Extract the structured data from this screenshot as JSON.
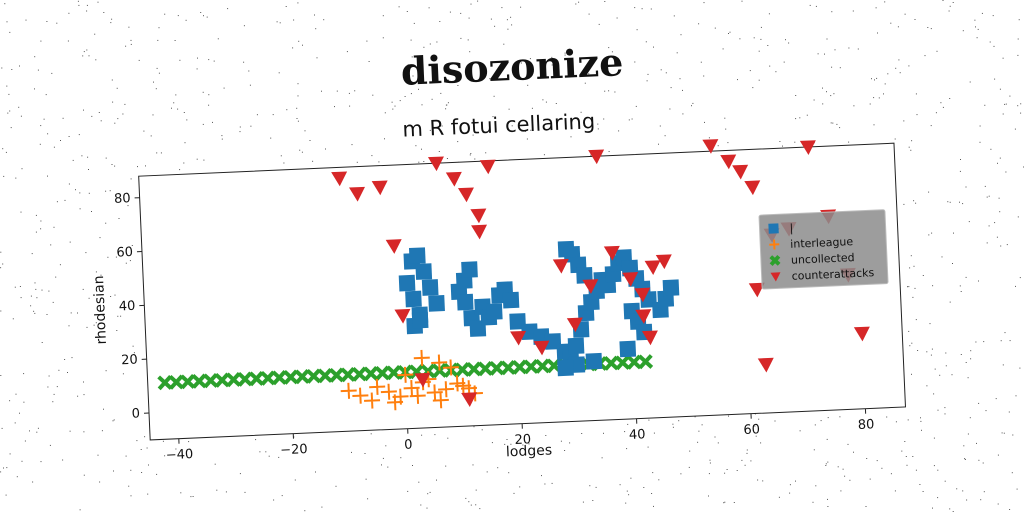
{
  "suptitle": "disozonize",
  "chart_data": {
    "type": "scatter",
    "title": "m R fotui cellaring",
    "xlabel": "lodges",
    "ylabel": "rhodesian",
    "xlim": [
      -45,
      87
    ],
    "ylim": [
      -10,
      88
    ],
    "xticks": [
      -40,
      -20,
      0,
      20,
      40,
      60,
      80
    ],
    "yticks": [
      0,
      20,
      40,
      60,
      80
    ],
    "xtick_labels": [
      "−40",
      "−20",
      "0",
      "20",
      "40",
      "60",
      "80"
    ],
    "ytick_labels": [
      "0",
      "20",
      "40",
      "60",
      "80"
    ],
    "grid": false,
    "legend": {
      "placement": "right"
    },
    "series": [
      {
        "name": "|",
        "marker": "square",
        "color": "#1f77b4",
        "x": [
          2,
          3,
          2,
          1,
          2,
          3,
          4,
          5,
          6,
          3,
          10,
          11,
          12,
          11,
          12,
          13,
          14,
          15,
          16,
          17,
          18,
          19,
          20,
          22,
          24,
          26,
          28,
          29,
          30,
          31,
          32,
          33,
          34,
          35,
          29,
          30,
          31,
          32,
          36,
          37,
          38,
          39,
          40,
          41,
          42,
          43,
          45,
          46,
          47,
          40,
          41,
          42,
          39,
          33,
          30,
          28
        ],
        "y": [
          28,
          32,
          38,
          44,
          52,
          54,
          48,
          42,
          36,
          30,
          40,
          44,
          48,
          36,
          30,
          26,
          34,
          30,
          32,
          38,
          40,
          36,
          28,
          24,
          22,
          20,
          16,
          14,
          18,
          24,
          30,
          34,
          38,
          42,
          54,
          52,
          48,
          44,
          40,
          44,
          48,
          50,
          46,
          42,
          38,
          34,
          30,
          34,
          38,
          30,
          26,
          22,
          16,
          12,
          11,
          10
        ]
      },
      {
        "name": "interleague",
        "marker": "plus",
        "color": "#ff7f0e",
        "x": [
          -10,
          -8,
          -5,
          -3,
          -1,
          1,
          3,
          5,
          7,
          9,
          -6,
          -2,
          2,
          4,
          6,
          8,
          10,
          12,
          0,
          3,
          11,
          6
        ],
        "y": [
          5,
          3,
          6,
          4,
          2,
          5,
          7,
          3,
          4,
          6,
          1,
          0,
          2,
          8,
          14,
          12,
          5,
          2,
          10,
          16,
          4,
          0
        ]
      },
      {
        "name": "uncollected",
        "marker": "x",
        "color": "#2ca02c",
        "x": [
          -42,
          -40,
          -38,
          -36,
          -34,
          -32,
          -30,
          -28,
          -26,
          -24,
          -22,
          -20,
          -18,
          -16,
          -14,
          -12,
          -10,
          -8,
          -6,
          -4,
          -2,
          0,
          2,
          4,
          6,
          8,
          10,
          12,
          14,
          16,
          18,
          20,
          22,
          24,
          26,
          28,
          30,
          32,
          34,
          36,
          38,
          40,
          42
        ],
        "y": [
          11,
          11,
          11,
          11,
          11,
          11,
          11,
          11,
          11,
          11,
          11,
          11,
          11,
          11,
          11,
          11,
          11,
          11,
          11,
          11,
          11,
          11,
          11,
          11,
          11,
          11,
          11,
          11,
          11,
          11,
          11,
          11,
          11,
          11,
          11,
          11,
          11,
          11,
          11,
          11,
          11,
          11,
          11
        ]
      },
      {
        "name": "counterattacks",
        "marker": "triangle-down",
        "color": "#d62728",
        "x": [
          -10,
          -7,
          -3,
          -1,
          7,
          10,
          12,
          14,
          16,
          20,
          24,
          30,
          33,
          35,
          37,
          40,
          42,
          44,
          46,
          55,
          58,
          60,
          62,
          65,
          68,
          72,
          75,
          78,
          80,
          62,
          63,
          0,
          3,
          11,
          14,
          28,
          43,
          42
        ],
        "y": [
          84,
          78,
          80,
          58,
          88,
          82,
          76,
          68,
          86,
          22,
          18,
          26,
          40,
          88,
          52,
          42,
          36,
          46,
          48,
          90,
          84,
          80,
          74,
          56,
          58,
          88,
          62,
          40,
          18,
          36,
          8,
          32,
          8,
          0,
          62,
          48,
          20,
          28
        ]
      }
    ]
  }
}
